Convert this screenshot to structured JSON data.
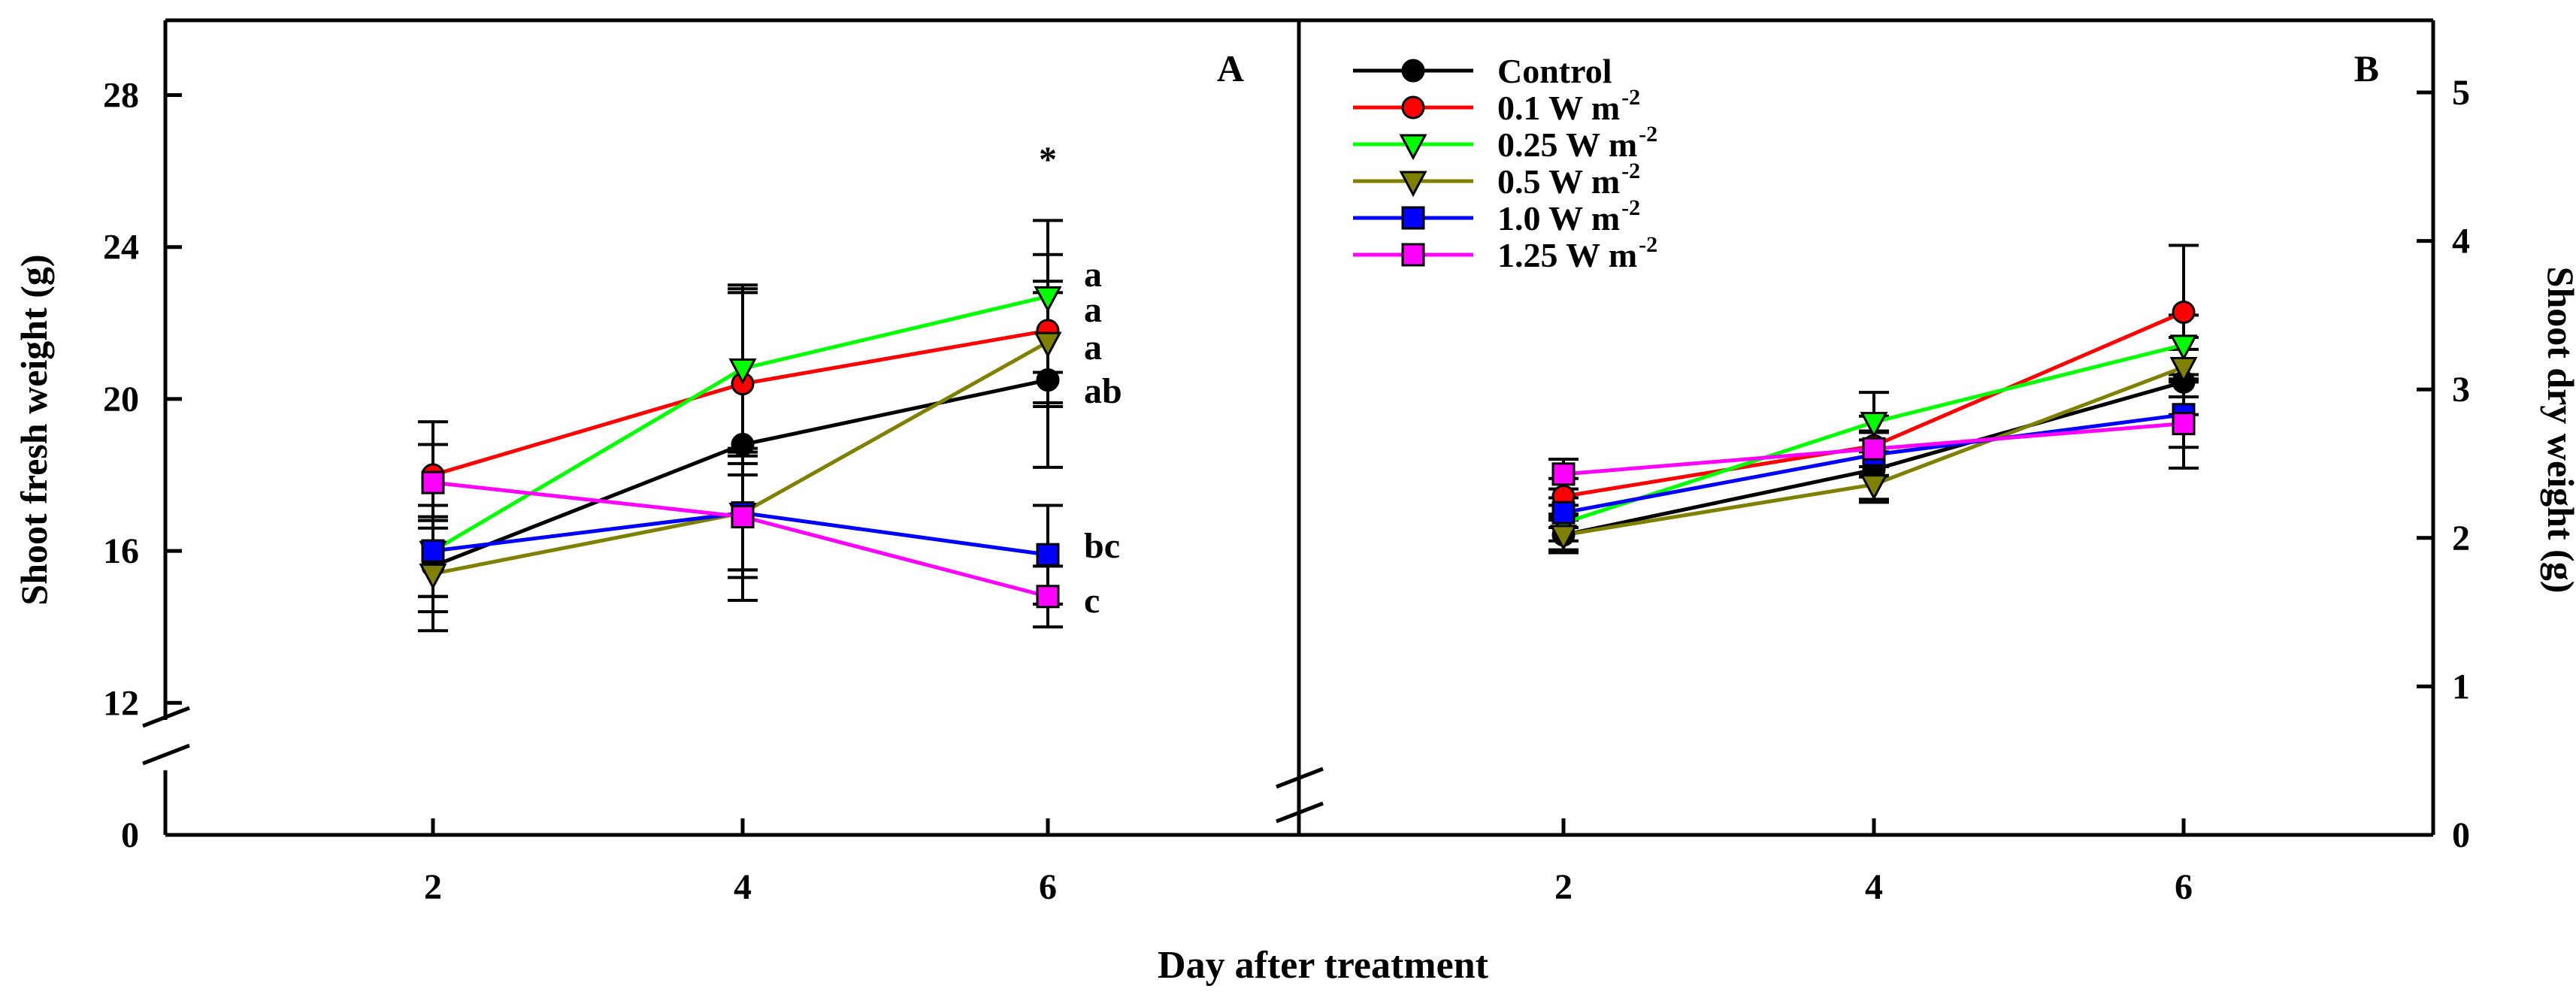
{
  "chart_data": [
    {
      "panel": "A",
      "type": "line",
      "ylabel": "Shoot fresh weight (g)",
      "xlabel": "Day after treatment",
      "x": [
        2,
        4,
        6
      ],
      "xticks": [
        "2",
        "4",
        "6"
      ],
      "yticks": [
        "0",
        "12",
        "16",
        "20",
        "24",
        "28"
      ],
      "ylim": [
        0,
        30
      ],
      "axis_break": [
        0,
        12
      ],
      "significance_marker": "*",
      "series": [
        {
          "key": "control",
          "name": "Control",
          "color": "#000000",
          "marker": "circle",
          "values": [
            15.6,
            18.8,
            20.5
          ],
          "errors": [
            1.2,
            4.1,
            2.3
          ]
        },
        {
          "key": "w01",
          "name": "0.1 W m-2",
          "color": "#ff0000",
          "marker": "circle",
          "values": [
            18.0,
            20.4,
            21.8
          ],
          "errors": [
            1.4,
            2.4,
            2.0
          ]
        },
        {
          "key": "w025",
          "name": "0.25 W m-2",
          "color": "#00ff00",
          "marker": "triangle",
          "values": [
            16.0,
            20.8,
            22.7
          ],
          "errors": [
            1.2,
            2.2,
            2.0
          ]
        },
        {
          "key": "w05",
          "name": "0.5 W m-2",
          "color": "#808000",
          "marker": "triangle",
          "values": [
            15.4,
            17.0,
            21.5
          ],
          "errors": [
            1.5,
            1.7,
            1.6
          ]
        },
        {
          "key": "w10",
          "name": "1.0 W m-2",
          "color": "#0000ff",
          "marker": "square",
          "values": [
            16.0,
            17.0,
            15.9
          ],
          "errors": [
            1.2,
            1.5,
            1.3
          ]
        },
        {
          "key": "w125",
          "name": "1.25 W m-2",
          "color": "#ff00ff",
          "marker": "square",
          "values": [
            17.8,
            16.9,
            14.8
          ],
          "errors": [
            1.0,
            1.4,
            0.8
          ]
        }
      ],
      "letters": [
        {
          "key": "w025",
          "label": "a"
        },
        {
          "key": "w01",
          "label": "a"
        },
        {
          "key": "w05",
          "label": "a"
        },
        {
          "key": "control",
          "label": "ab"
        },
        {
          "key": "w10",
          "label": "bc"
        },
        {
          "key": "w125",
          "label": "c"
        }
      ]
    },
    {
      "panel": "B",
      "type": "line",
      "ylabel": "Shoot dry weight (g)",
      "xlabel": "Day after treatment",
      "x": [
        2,
        4,
        6
      ],
      "xticks": [
        "2",
        "4",
        "6"
      ],
      "yticks": [
        "0",
        "1",
        "2",
        "3",
        "4",
        "5"
      ],
      "ylim": [
        0,
        5.5
      ],
      "series": [
        {
          "key": "control",
          "name": "Control",
          "color": "#000000",
          "marker": "circle",
          "values": [
            2.02,
            2.46,
            3.05
          ],
          "errors": [
            0.12,
            0.2,
            0.22
          ]
        },
        {
          "key": "w01",
          "name": "0.1 W m-2",
          "color": "#ff0000",
          "marker": "circle",
          "values": [
            2.28,
            2.62,
            3.52
          ],
          "errors": [
            0.12,
            0.2,
            0.45
          ]
        },
        {
          "key": "w025",
          "name": "0.25 W m-2",
          "color": "#00ff00",
          "marker": "triangle",
          "values": [
            2.1,
            2.78,
            3.3
          ],
          "errors": [
            0.12,
            0.2,
            0.2
          ]
        },
        {
          "key": "w05",
          "name": "0.5 W m-2",
          "color": "#808000",
          "marker": "triangle",
          "values": [
            2.02,
            2.36,
            3.15
          ],
          "errors": [
            0.1,
            0.12,
            0.2
          ]
        },
        {
          "key": "w10",
          "name": "1.0 W m-2",
          "color": "#0000ff",
          "marker": "square",
          "values": [
            2.17,
            2.56,
            2.83
          ],
          "errors": [
            0.1,
            0.15,
            0.22
          ]
        },
        {
          "key": "w125",
          "name": "1.25 W m-2",
          "color": "#ff00ff",
          "marker": "square",
          "values": [
            2.43,
            2.6,
            2.77
          ],
          "errors": [
            0.1,
            0.12,
            0.3
          ]
        }
      ]
    }
  ],
  "legend": [
    {
      "key": "control",
      "base": "Control",
      "sup": ""
    },
    {
      "key": "w01",
      "base": "0.1 W m",
      "sup": "-2"
    },
    {
      "key": "w025",
      "base": "0.25 W m",
      "sup": "-2"
    },
    {
      "key": "w05",
      "base": "0.5 W m",
      "sup": "-2"
    },
    {
      "key": "w10",
      "base": "1.0 W m",
      "sup": "-2"
    },
    {
      "key": "w125",
      "base": "1.25 W m",
      "sup": "-2"
    }
  ]
}
